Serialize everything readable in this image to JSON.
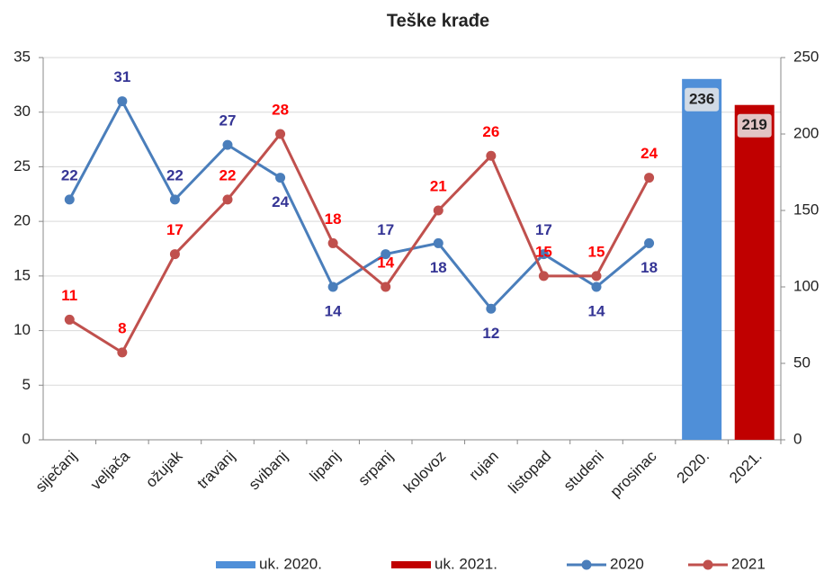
{
  "chart_data": {
    "type": "combo",
    "title": "Teške krađe",
    "categories": [
      "siječanj",
      "veljača",
      "ožujak",
      "travanj",
      "svibanj",
      "lipanj",
      "srpanj",
      "kolovoz",
      "rujan",
      "listopad",
      "studeni",
      "prosinac",
      "2020.",
      "2021."
    ],
    "series": [
      {
        "name": "uk. 2020.",
        "type": "bar",
        "axis": "y2",
        "color": "#4f8fd8",
        "values": [
          null,
          null,
          null,
          null,
          null,
          null,
          null,
          null,
          null,
          null,
          null,
          null,
          236,
          null
        ]
      },
      {
        "name": "uk. 2021.",
        "type": "bar",
        "axis": "y2",
        "color": "#c00000",
        "values": [
          null,
          null,
          null,
          null,
          null,
          null,
          null,
          null,
          null,
          null,
          null,
          null,
          null,
          219
        ]
      },
      {
        "name": "2020",
        "type": "line",
        "color": "#4a7ebb",
        "label_color": "#353595",
        "values": [
          22,
          31,
          22,
          27,
          24,
          14,
          17,
          18,
          12,
          17,
          14,
          18,
          null,
          null
        ]
      },
      {
        "name": "2021",
        "type": "line",
        "color": "#c0504d",
        "label_color": "#ff0000",
        "values": [
          11,
          8,
          17,
          22,
          28,
          18,
          14,
          21,
          26,
          15,
          15,
          24,
          null,
          null
        ]
      }
    ],
    "ylim": [
      0,
      35
    ],
    "yticks": [
      0,
      5,
      10,
      15,
      20,
      25,
      30,
      35
    ],
    "y2lim": [
      0,
      250
    ],
    "y2ticks": [
      0,
      50,
      100,
      150,
      200,
      250
    ],
    "grid": true,
    "legend": "bottom"
  }
}
